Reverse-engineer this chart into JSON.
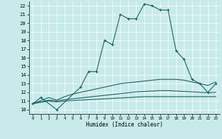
{
  "xlabel": "Humidex (Indice chaleur)",
  "xlim": [
    -0.5,
    23.5
  ],
  "ylim": [
    9.5,
    22.5
  ],
  "xticks": [
    0,
    1,
    2,
    3,
    4,
    5,
    6,
    7,
    8,
    9,
    10,
    11,
    12,
    13,
    14,
    15,
    16,
    17,
    18,
    19,
    20,
    21,
    22,
    23
  ],
  "yticks": [
    10,
    11,
    12,
    13,
    14,
    15,
    16,
    17,
    18,
    19,
    20,
    21,
    22
  ],
  "bg_color": "#c8eaea",
  "grid_color": "#ffffff",
  "line_color": "#1a6060",
  "s1_x": [
    0,
    1,
    3,
    6,
    7,
    8,
    9,
    10,
    11,
    12,
    13,
    14,
    15,
    16,
    17,
    18,
    19,
    20,
    21,
    22,
    23
  ],
  "s1_y": [
    10.7,
    11.4,
    10.0,
    12.6,
    14.4,
    14.4,
    18.0,
    17.5,
    21.0,
    20.5,
    20.5,
    22.2,
    22.0,
    21.5,
    21.5,
    16.8,
    15.8,
    13.5,
    13.0,
    12.0,
    13.0
  ],
  "s2_x": [
    0,
    2,
    3,
    4,
    5,
    6,
    7,
    8,
    9,
    10,
    11,
    12,
    13,
    14,
    15,
    16,
    17,
    18,
    19,
    20,
    21,
    22,
    23
  ],
  "s2_y": [
    10.7,
    11.4,
    11.1,
    11.5,
    11.8,
    12.0,
    12.2,
    12.4,
    12.6,
    12.8,
    13.0,
    13.1,
    13.2,
    13.3,
    13.4,
    13.5,
    13.5,
    13.5,
    13.4,
    13.2,
    13.0,
    12.8,
    13.2
  ],
  "s3_x": [
    0,
    2,
    3,
    4,
    5,
    6,
    7,
    8,
    9,
    10,
    11,
    12,
    13,
    14,
    15,
    16,
    17,
    18,
    19,
    20,
    21,
    22,
    23
  ],
  "s3_y": [
    10.7,
    11.1,
    11.0,
    11.15,
    11.25,
    11.35,
    11.45,
    11.55,
    11.65,
    11.75,
    11.85,
    11.95,
    12.05,
    12.1,
    12.15,
    12.2,
    12.2,
    12.15,
    12.1,
    12.05,
    12.0,
    11.95,
    12.0
  ],
  "s4_x": [
    0,
    2,
    3,
    4,
    5,
    6,
    7,
    8,
    9,
    10,
    11,
    12,
    13,
    14,
    15,
    16,
    17,
    18,
    19,
    20,
    21,
    22,
    23
  ],
  "s4_y": [
    10.7,
    11.0,
    10.9,
    11.0,
    11.05,
    11.1,
    11.15,
    11.2,
    11.25,
    11.3,
    11.35,
    11.4,
    11.45,
    11.5,
    11.5,
    11.5,
    11.5,
    11.5,
    11.5,
    11.5,
    11.5,
    11.5,
    11.5
  ]
}
